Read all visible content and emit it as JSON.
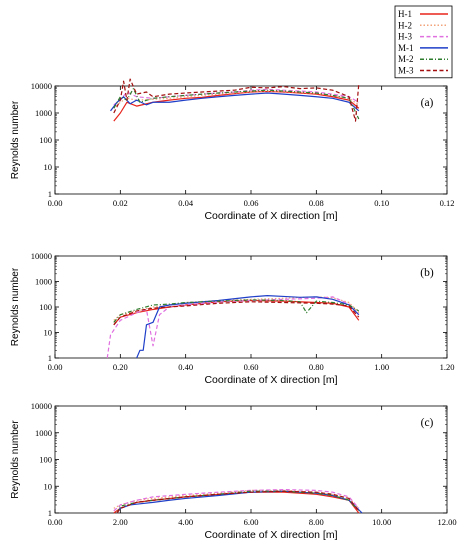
{
  "legend": {
    "placement": "top-right",
    "entries": [
      {
        "label": "H-1",
        "color": "#e8231b",
        "dash": "solid"
      },
      {
        "label": "H-2",
        "color": "#f2a37a",
        "dash": "dot"
      },
      {
        "label": "H-3",
        "color": "#e070e0",
        "dash": "dash"
      },
      {
        "label": "M-1",
        "color": "#1f3fc8",
        "dash": "solid"
      },
      {
        "label": "M-2",
        "color": "#2e7d2e",
        "dash": "dashdot"
      },
      {
        "label": "M-3",
        "color": "#a30f0f",
        "dash": "dash"
      }
    ]
  },
  "chart_data": [
    {
      "type": "line",
      "panel_label": "(a)",
      "xlabel": "Coordinate of X direction [m]",
      "ylabel": "Reynolds number",
      "xlim": [
        0,
        0.12
      ],
      "xticks": [
        "0.00",
        "0.02",
        "0.04",
        "0.06",
        "0.08",
        "0.10",
        "0.12"
      ],
      "ylim": [
        1,
        10000
      ],
      "yscale": "log",
      "yticks": [
        "1",
        "10",
        "100",
        "1000",
        "10000"
      ],
      "series": [
        {
          "name": "H-1",
          "x": [
            0.018,
            0.02,
            0.022,
            0.025,
            0.03,
            0.035,
            0.04,
            0.045,
            0.05,
            0.055,
            0.06,
            0.065,
            0.07,
            0.075,
            0.08,
            0.085,
            0.09,
            0.093
          ],
          "y": [
            500,
            1000,
            2500,
            1800,
            2500,
            3000,
            3500,
            3800,
            4500,
            5200,
            6000,
            6300,
            6000,
            5500,
            5000,
            4000,
            3000,
            1500
          ]
        },
        {
          "name": "H-2",
          "x": [
            0.018,
            0.02,
            0.022,
            0.025,
            0.03,
            0.035,
            0.04,
            0.045,
            0.05,
            0.055,
            0.06,
            0.065,
            0.07,
            0.075,
            0.08,
            0.085,
            0.09,
            0.093
          ],
          "y": [
            1500,
            2500,
            3500,
            3000,
            3200,
            3500,
            4000,
            4500,
            5000,
            5500,
            6200,
            6500,
            6200,
            5800,
            5300,
            4500,
            3500,
            2000
          ]
        },
        {
          "name": "H-3",
          "x": [
            0.018,
            0.02,
            0.022,
            0.025,
            0.03,
            0.035,
            0.04,
            0.045,
            0.05,
            0.055,
            0.06,
            0.065,
            0.07,
            0.075,
            0.08,
            0.085,
            0.09,
            0.093
          ],
          "y": [
            2000,
            3000,
            6000,
            4000,
            3500,
            4000,
            4500,
            5000,
            5500,
            6000,
            7000,
            7500,
            7000,
            6500,
            6000,
            5000,
            4000,
            2500
          ]
        },
        {
          "name": "M-1",
          "x": [
            0.017,
            0.019,
            0.021,
            0.023,
            0.025,
            0.028,
            0.03,
            0.035,
            0.04,
            0.045,
            0.05,
            0.055,
            0.06,
            0.065,
            0.07,
            0.075,
            0.08,
            0.085,
            0.09,
            0.093
          ],
          "y": [
            1200,
            2500,
            4000,
            2200,
            3000,
            2000,
            2500,
            2500,
            3000,
            3500,
            4000,
            4500,
            5000,
            5500,
            5000,
            4500,
            4000,
            3500,
            2500,
            1200
          ]
        },
        {
          "name": "M-2",
          "x": [
            0.018,
            0.02,
            0.022,
            0.024,
            0.026,
            0.03,
            0.035,
            0.04,
            0.045,
            0.05,
            0.055,
            0.06,
            0.065,
            0.07,
            0.075,
            0.08,
            0.085,
            0.09,
            0.093
          ],
          "y": [
            1500,
            4000,
            3000,
            8000,
            2500,
            3500,
            4000,
            4500,
            5000,
            5500,
            6000,
            6500,
            7000,
            6500,
            6000,
            5500,
            4500,
            3500,
            600
          ]
        },
        {
          "name": "M-3",
          "x": [
            0.018,
            0.02,
            0.021,
            0.022,
            0.023,
            0.025,
            0.028,
            0.03,
            0.035,
            0.04,
            0.045,
            0.05,
            0.055,
            0.06,
            0.065,
            0.07,
            0.075,
            0.08,
            0.085,
            0.09,
            0.092,
            0.093
          ],
          "y": [
            1000,
            3000,
            15000,
            3000,
            18000,
            5000,
            6000,
            4000,
            5000,
            5500,
            6000,
            6500,
            7000,
            9000,
            8500,
            9500,
            8000,
            8500,
            7000,
            4000,
            500,
            12000
          ]
        }
      ]
    },
    {
      "type": "line",
      "panel_label": "(b)",
      "xlabel": "Coordinate of X direction [m]",
      "ylabel": "Reynolds number",
      "xlim": [
        0,
        1.2
      ],
      "xticks": [
        "0.00",
        "0.20",
        "0.40",
        "0.60",
        "0.80",
        "1.00",
        "1.20"
      ],
      "ylim": [
        1,
        10000
      ],
      "yscale": "log",
      "yticks": [
        "1",
        "10",
        "100",
        "1000",
        "10000"
      ],
      "series": [
        {
          "name": "H-1",
          "x": [
            0.18,
            0.2,
            0.25,
            0.3,
            0.35,
            0.4,
            0.5,
            0.6,
            0.7,
            0.8,
            0.85,
            0.9,
            0.93
          ],
          "y": [
            20,
            40,
            60,
            80,
            100,
            120,
            160,
            180,
            170,
            150,
            140,
            100,
            30
          ]
        },
        {
          "name": "H-2",
          "x": [
            0.18,
            0.2,
            0.25,
            0.3,
            0.35,
            0.4,
            0.5,
            0.6,
            0.7,
            0.8,
            0.85,
            0.9,
            0.93
          ],
          "y": [
            30,
            50,
            70,
            100,
            120,
            150,
            180,
            200,
            220,
            250,
            230,
            150,
            60
          ]
        },
        {
          "name": "H-3",
          "x": [
            0.16,
            0.17,
            0.2,
            0.25,
            0.28,
            0.3,
            0.32,
            0.35,
            0.4,
            0.5,
            0.6,
            0.7,
            0.8,
            0.85,
            0.9,
            0.93
          ],
          "y": [
            1,
            8,
            30,
            60,
            80,
            3,
            50,
            100,
            120,
            160,
            180,
            200,
            220,
            250,
            130,
            50
          ]
        },
        {
          "name": "M-1",
          "x": [
            0.25,
            0.26,
            0.27,
            0.28,
            0.3,
            0.32,
            0.35,
            0.4,
            0.5,
            0.6,
            0.65,
            0.7,
            0.75,
            0.8,
            0.85,
            0.9,
            0.93
          ],
          "y": [
            1,
            2,
            2,
            20,
            25,
            100,
            120,
            140,
            180,
            250,
            280,
            260,
            240,
            250,
            200,
            120,
            50
          ]
        },
        {
          "name": "M-2",
          "x": [
            0.18,
            0.2,
            0.25,
            0.3,
            0.35,
            0.4,
            0.5,
            0.6,
            0.7,
            0.75,
            0.77,
            0.8,
            0.85,
            0.9,
            0.93
          ],
          "y": [
            25,
            50,
            80,
            120,
            130,
            150,
            170,
            190,
            180,
            160,
            60,
            170,
            150,
            120,
            70
          ]
        },
        {
          "name": "M-3",
          "x": [
            0.18,
            0.2,
            0.25,
            0.3,
            0.35,
            0.4,
            0.5,
            0.6,
            0.7,
            0.8,
            0.85,
            0.9,
            0.93
          ],
          "y": [
            20,
            40,
            70,
            90,
            100,
            110,
            140,
            160,
            150,
            140,
            130,
            110,
            40
          ]
        }
      ]
    },
    {
      "type": "line",
      "panel_label": "(c)",
      "xlabel": "Coordinate of X direction [m]",
      "ylabel": "Reynolds number",
      "xlim": [
        0,
        12
      ],
      "xticks": [
        "0.00",
        "2.00",
        "4.00",
        "6.00",
        "8.00",
        "10.00",
        "12.00"
      ],
      "ylim": [
        1,
        10000
      ],
      "yscale": "log",
      "yticks": [
        "1",
        "10",
        "100",
        "1000",
        "10000"
      ],
      "series": [
        {
          "name": "H-1",
          "x": [
            1.8,
            2.0,
            2.5,
            3.0,
            4.0,
            5.0,
            6.0,
            7.0,
            8.0,
            8.5,
            9.0,
            9.3
          ],
          "y": [
            1,
            1.5,
            2.5,
            3,
            4,
            5,
            6,
            6,
            5,
            4,
            3,
            1
          ]
        },
        {
          "name": "H-2",
          "x": [
            1.8,
            2.0,
            2.5,
            3.0,
            4.0,
            5.0,
            6.0,
            7.0,
            8.0,
            8.5,
            9.0,
            9.3
          ],
          "y": [
            1.5,
            2,
            3,
            3.5,
            4.5,
            5.5,
            7,
            7,
            6,
            5,
            3.5,
            1.5
          ]
        },
        {
          "name": "H-3",
          "x": [
            1.8,
            2.0,
            2.5,
            3.0,
            4.0,
            5.0,
            6.0,
            7.0,
            8.0,
            8.5,
            9.0,
            9.3
          ],
          "y": [
            1.2,
            2,
            3,
            4,
            5,
            6,
            7,
            7.5,
            7,
            6,
            4,
            1.5
          ]
        },
        {
          "name": "M-1",
          "x": [
            1.9,
            2.0,
            2.3,
            2.6,
            3.0,
            3.5,
            4.0,
            5.0,
            6.0,
            7.0,
            8.0,
            8.5,
            9.0,
            9.4
          ],
          "y": [
            1,
            1.5,
            2,
            2.2,
            2.5,
            3,
            3.5,
            4.5,
            6,
            6.5,
            5.5,
            4.5,
            3,
            1
          ]
        },
        {
          "name": "M-2",
          "x": [
            1.9,
            2.0,
            2.5,
            3.0,
            4.0,
            5.0,
            6.0,
            7.0,
            8.0,
            8.5,
            9.0,
            9.3
          ],
          "y": [
            1,
            1.8,
            2.5,
            3,
            4,
            5,
            6.5,
            6.5,
            5.5,
            4.5,
            3,
            1.2
          ]
        },
        {
          "name": "M-3",
          "x": [
            1.9,
            2.0,
            2.5,
            3.0,
            4.0,
            5.0,
            6.0,
            7.0,
            8.0,
            8.5,
            9.0,
            9.3
          ],
          "y": [
            1,
            1.5,
            2.5,
            3,
            4,
            5,
            6,
            6.5,
            6,
            5,
            3.5,
            1.2
          ]
        }
      ]
    }
  ]
}
